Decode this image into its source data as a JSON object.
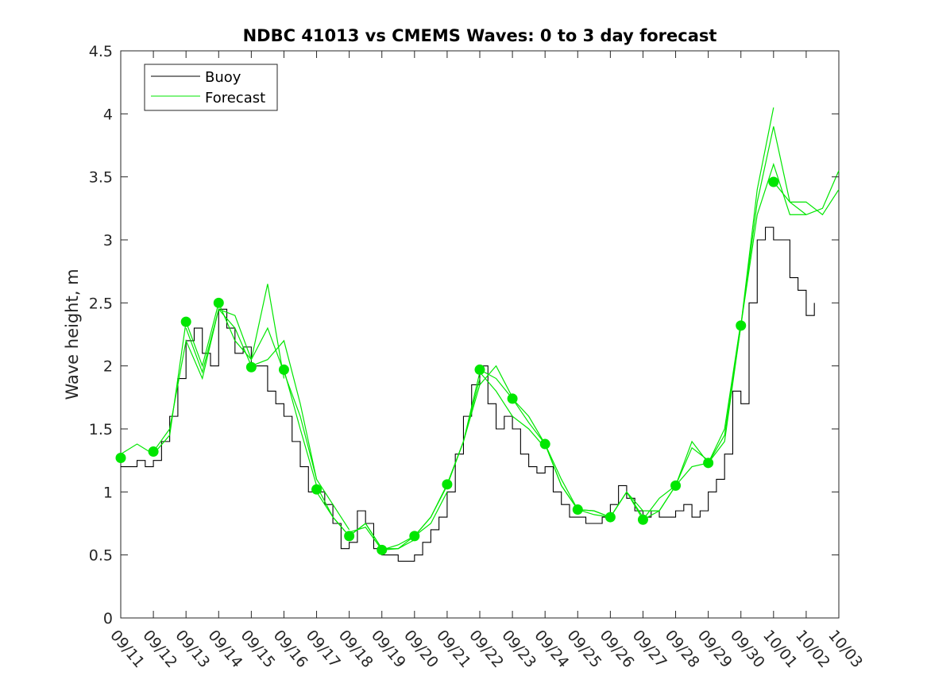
{
  "chart_data": {
    "type": "line",
    "title": "NDBC 41013 vs CMEMS Waves: 0 to 3 day forecast",
    "xlabel": "",
    "ylabel": "Wave height, m",
    "ylim": [
      0,
      4.5
    ],
    "yticks": [
      "0",
      "0.5",
      "1",
      "1.5",
      "2",
      "2.5",
      "3",
      "3.5",
      "4",
      "4.5"
    ],
    "xticks": [
      "09/11",
      "09/12",
      "09/13",
      "09/14",
      "09/15",
      "09/16",
      "09/17",
      "09/18",
      "09/19",
      "09/20",
      "09/21",
      "09/22",
      "09/23",
      "09/24",
      "09/25",
      "09/26",
      "09/27",
      "09/28",
      "09/29",
      "09/30",
      "10/01",
      "10/02",
      "10/03"
    ],
    "x_unit": "days since 09/11",
    "xlim": [
      0,
      22
    ],
    "legend": {
      "position": "top-left",
      "entries": [
        "Buoy",
        "Forecast"
      ]
    },
    "colors": {
      "buoy": "#000000",
      "forecast": "#00e600"
    },
    "series": [
      {
        "name": "Buoy",
        "x": [
          0,
          0.25,
          0.5,
          0.75,
          1,
          1.25,
          1.5,
          1.75,
          2,
          2.25,
          2.5,
          2.75,
          3,
          3.25,
          3.5,
          3.75,
          4,
          4.25,
          4.5,
          4.75,
          5,
          5.25,
          5.5,
          5.75,
          6,
          6.25,
          6.5,
          6.75,
          7,
          7.25,
          7.5,
          7.75,
          8,
          8.25,
          8.5,
          8.75,
          9,
          9.25,
          9.5,
          9.75,
          10,
          10.25,
          10.5,
          10.75,
          11,
          11.25,
          11.5,
          11.75,
          12,
          12.25,
          12.5,
          12.75,
          13,
          13.25,
          13.5,
          13.75,
          14,
          14.25,
          14.5,
          14.75,
          15,
          15.25,
          15.5,
          15.75,
          16,
          16.25,
          16.5,
          16.75,
          17,
          17.25,
          17.5,
          17.75,
          18,
          18.25,
          18.5,
          18.75,
          19,
          19.25,
          19.5,
          19.75,
          20,
          20.25,
          20.5,
          20.75,
          21,
          21.25
        ],
        "values": [
          1.2,
          1.2,
          1.25,
          1.2,
          1.25,
          1.4,
          1.6,
          1.9,
          2.2,
          2.3,
          2.1,
          2.0,
          2.45,
          2.3,
          2.1,
          2.15,
          2.0,
          2.0,
          1.8,
          1.7,
          1.6,
          1.4,
          1.2,
          1.0,
          1.0,
          0.9,
          0.75,
          0.55,
          0.6,
          0.85,
          0.75,
          0.55,
          0.5,
          0.5,
          0.45,
          0.45,
          0.5,
          0.6,
          0.7,
          0.8,
          1.0,
          1.3,
          1.6,
          1.85,
          2.0,
          1.7,
          1.5,
          1.6,
          1.5,
          1.3,
          1.2,
          1.15,
          1.2,
          1.0,
          0.9,
          0.8,
          0.8,
          0.75,
          0.75,
          0.8,
          0.9,
          1.05,
          0.95,
          0.85,
          0.8,
          0.85,
          0.8,
          0.8,
          0.85,
          0.9,
          0.8,
          0.85,
          1.0,
          1.1,
          1.3,
          1.8,
          1.7,
          2.5,
          3.0,
          3.1,
          3.0,
          3.0,
          2.7,
          2.6,
          2.4,
          2.5
        ]
      },
      {
        "name": "Forecast",
        "x": [
          0,
          1,
          2,
          3,
          4,
          5,
          6,
          7,
          8,
          9,
          10,
          11,
          12,
          13,
          14,
          15,
          16,
          17,
          18,
          19,
          20,
          21,
          22
        ],
        "values": [
          1.27,
          1.32,
          2.35,
          2.5,
          1.99,
          1.97,
          1.02,
          0.65,
          0.54,
          0.65,
          1.06,
          1.97,
          1.74,
          1.38,
          0.86,
          0.8,
          0.78,
          1.05,
          1.23,
          2.32,
          3.46,
          3.25,
          3.45
        ],
        "runs": [
          {
            "x": [
              0,
              0.5,
              1,
              1.5,
              2,
              2.5,
              3
            ],
            "values": [
              1.3,
              1.38,
              1.3,
              1.45,
              2.35,
              2.0,
              2.5
            ]
          },
          {
            "x": [
              1,
              1.5,
              2,
              2.5,
              3,
              3.5,
              4
            ],
            "values": [
              1.32,
              1.5,
              2.2,
              1.9,
              2.45,
              2.3,
              2.0
            ]
          },
          {
            "x": [
              2,
              2.5,
              3,
              3.5,
              4,
              4.5,
              5
            ],
            "values": [
              2.3,
              1.95,
              2.45,
              2.4,
              2.05,
              2.65,
              1.9
            ]
          },
          {
            "x": [
              3,
              3.5,
              4,
              4.5,
              5,
              5.5,
              6
            ],
            "values": [
              2.5,
              2.2,
              2.05,
              2.3,
              1.95,
              1.6,
              1.1
            ]
          },
          {
            "x": [
              4,
              4.5,
              5,
              5.5,
              6,
              6.5,
              7
            ],
            "values": [
              2.0,
              2.05,
              2.2,
              1.7,
              1.1,
              0.9,
              0.7
            ]
          },
          {
            "x": [
              5,
              5.5,
              6,
              6.5,
              7,
              7.5,
              8
            ],
            "values": [
              1.97,
              1.5,
              1.05,
              0.8,
              0.65,
              0.75,
              0.55
            ]
          },
          {
            "x": [
              6,
              6.5,
              7,
              7.5,
              8,
              8.5,
              9
            ],
            "values": [
              1.0,
              0.8,
              0.65,
              0.75,
              0.55,
              0.55,
              0.62
            ]
          },
          {
            "x": [
              7,
              7.5,
              8,
              8.5,
              9,
              9.5,
              10
            ],
            "values": [
              0.68,
              0.72,
              0.54,
              0.55,
              0.65,
              0.75,
              1.0
            ]
          },
          {
            "x": [
              8,
              8.5,
              9,
              9.5,
              10,
              10.5,
              11
            ],
            "values": [
              0.54,
              0.58,
              0.65,
              0.8,
              1.05,
              1.4,
              1.9
            ]
          },
          {
            "x": [
              9,
              9.5,
              10,
              10.5,
              11,
              11.5,
              12
            ],
            "values": [
              0.65,
              0.8,
              1.06,
              1.4,
              1.85,
              2.0,
              1.75
            ]
          },
          {
            "x": [
              10,
              10.5,
              11,
              11.5,
              12,
              12.5,
              13
            ],
            "values": [
              1.06,
              1.4,
              1.95,
              1.8,
              1.6,
              1.5,
              1.35
            ]
          },
          {
            "x": [
              11,
              11.5,
              12,
              12.5,
              13,
              13.5,
              14
            ],
            "values": [
              1.97,
              1.9,
              1.74,
              1.55,
              1.38,
              1.05,
              0.86
            ]
          },
          {
            "x": [
              12,
              12.5,
              13,
              13.5,
              14,
              14.5,
              15
            ],
            "values": [
              1.74,
              1.6,
              1.38,
              1.05,
              0.86,
              0.85,
              0.8
            ]
          },
          {
            "x": [
              13,
              13.5,
              14,
              14.5,
              15,
              15.5,
              16
            ],
            "values": [
              1.38,
              1.1,
              0.86,
              0.85,
              0.8,
              1.0,
              0.8
            ]
          },
          {
            "x": [
              14,
              14.5,
              15,
              15.5,
              16,
              16.5,
              17
            ],
            "values": [
              0.86,
              0.82,
              0.8,
              1.0,
              0.85,
              0.85,
              1.05
            ]
          },
          {
            "x": [
              15,
              15.5,
              16,
              16.5,
              17,
              17.5,
              18
            ],
            "values": [
              0.8,
              1.0,
              0.78,
              0.85,
              1.05,
              1.35,
              1.25
            ]
          },
          {
            "x": [
              16,
              16.5,
              17,
              17.5,
              18,
              18.5,
              19
            ],
            "values": [
              0.78,
              0.95,
              1.05,
              1.4,
              1.23,
              1.5,
              2.35
            ]
          },
          {
            "x": [
              17,
              17.5,
              18,
              18.5,
              19,
              19.5,
              20
            ],
            "values": [
              1.05,
              1.2,
              1.23,
              1.45,
              2.32,
              3.4,
              4.05
            ]
          },
          {
            "x": [
              18,
              18.5,
              19,
              19.5,
              20,
              20.5,
              21
            ],
            "values": [
              1.23,
              1.4,
              2.32,
              3.3,
              3.9,
              3.3,
              3.2
            ]
          },
          {
            "x": [
              19,
              19.5,
              20,
              20.5,
              21,
              21.5,
              22
            ],
            "values": [
              2.32,
              3.2,
              3.6,
              3.2,
              3.2,
              3.25,
              3.55
            ]
          },
          {
            "x": [
              20,
              20.5,
              21,
              21.5,
              22
            ],
            "values": [
              3.46,
              3.3,
              3.3,
              3.2,
              3.4
            ]
          }
        ]
      }
    ]
  }
}
